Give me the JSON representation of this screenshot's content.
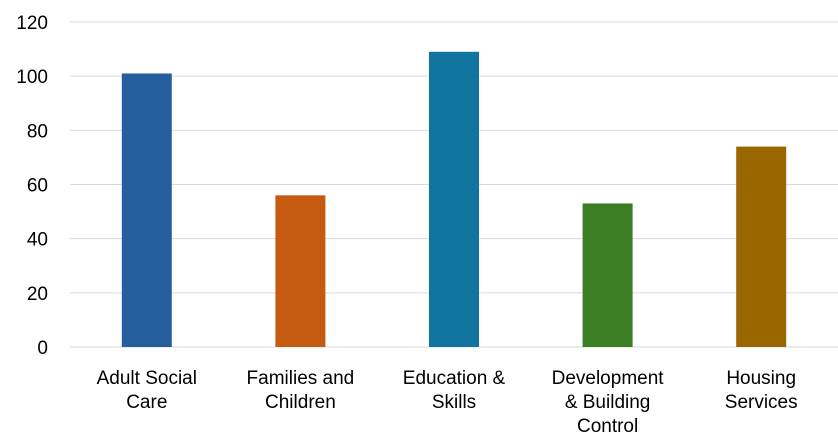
{
  "chart_data": {
    "type": "bar",
    "title": "",
    "xlabel": "",
    "ylabel": "",
    "categories": [
      [
        "Adult Social",
        "Care"
      ],
      [
        "Families and",
        "Children"
      ],
      [
        "Education &",
        "Skills"
      ],
      [
        "Development",
        "& Building",
        "Control"
      ],
      [
        "Housing",
        "Services"
      ]
    ],
    "values": [
      101,
      56,
      109,
      53,
      74
    ],
    "colors": [
      "#255e9c",
      "#c55a11",
      "#1175a0",
      "#3a7d23",
      "#996600"
    ],
    "ylim": [
      0,
      120
    ],
    "yticks": [
      0,
      20,
      40,
      60,
      80,
      100,
      120
    ],
    "grid": true,
    "legend": "none"
  }
}
